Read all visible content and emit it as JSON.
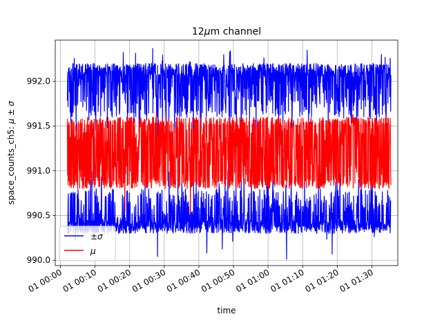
{
  "chart_data": {
    "type": "line",
    "title_prefix": "12",
    "title_mu": "μ",
    "title_suffix": "m channel",
    "xlabel": "time",
    "ylabel_text": "space_counts_ch5: ",
    "ylabel_math": "μ ± σ",
    "x_range_minutes": [
      -1.5,
      97.5
    ],
    "ylim": [
      989.94,
      992.46
    ],
    "x_data_range_minutes": [
      2,
      95.5
    ],
    "x_ticks": [
      {
        "minutes": 0,
        "label": "01 00:00"
      },
      {
        "minutes": 10,
        "label": "01 00:10"
      },
      {
        "minutes": 20,
        "label": "01 00:20"
      },
      {
        "minutes": 30,
        "label": "01 00:30"
      },
      {
        "minutes": 40,
        "label": "01 00:40"
      },
      {
        "minutes": 50,
        "label": "01 00:50"
      },
      {
        "minutes": 60,
        "label": "01 01:00"
      },
      {
        "minutes": 70,
        "label": "01 01:10"
      },
      {
        "minutes": 80,
        "label": "01 01:20"
      },
      {
        "minutes": 90,
        "label": "01 01:30"
      }
    ],
    "y_ticks": [
      {
        "value": 990.0,
        "label": "990.0"
      },
      {
        "value": 990.5,
        "label": "990.5"
      },
      {
        "value": 991.0,
        "label": "991.0"
      },
      {
        "value": 991.5,
        "label": "991.5"
      },
      {
        "value": 992.0,
        "label": "992.0"
      }
    ],
    "grid": true,
    "legend_position": "lower-left",
    "series": [
      {
        "name": "±σ",
        "legend_label": "±σ",
        "color": "#0000ff",
        "role": "upper",
        "typical_range": [
          991.6,
          992.2
        ],
        "extreme_max": 992.42
      },
      {
        "name": "±σ",
        "legend_label": "",
        "color": "#0000ff",
        "role": "lower",
        "typical_range": [
          990.3,
          990.8
        ],
        "extreme_min": 990.0
      },
      {
        "name": "μ",
        "legend_label": "μ",
        "color": "#ff0000",
        "role": "mean",
        "typical_range": [
          990.8,
          991.6
        ],
        "extreme_range": [
          990.5,
          991.8
        ]
      }
    ]
  }
}
